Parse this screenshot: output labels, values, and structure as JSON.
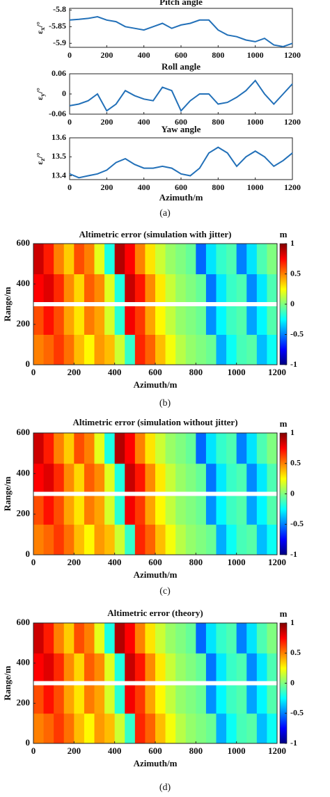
{
  "captions": [
    "(a)",
    "(b)",
    "(c)",
    "(d)"
  ],
  "chart_data": [
    {
      "type": "line",
      "title": "Pitch angle",
      "ylabel": "ε",
      "ylabel_sub": "x",
      "ylabel_unit": "/°",
      "x": [
        0,
        50,
        100,
        150,
        200,
        250,
        300,
        350,
        400,
        450,
        500,
        550,
        600,
        650,
        700,
        750,
        800,
        850,
        900,
        950,
        1000,
        1050,
        1100,
        1150,
        1200
      ],
      "series": [
        {
          "color": "#2270b8",
          "values": [
            -5.83,
            -5.828,
            -5.825,
            -5.82,
            -5.83,
            -5.835,
            -5.85,
            -5.855,
            -5.86,
            -5.85,
            -5.84,
            -5.855,
            -5.845,
            -5.84,
            -5.83,
            -5.83,
            -5.86,
            -5.875,
            -5.88,
            -5.89,
            -5.895,
            -5.885,
            -5.905,
            -5.91,
            -5.9
          ]
        }
      ],
      "xlim": [
        0,
        1200
      ],
      "xticks": [
        0,
        200,
        400,
        600,
        800,
        1000,
        1200
      ],
      "ylim": [
        -5.912,
        -5.795
      ],
      "yticks": [
        -5.8,
        -5.85,
        -5.9
      ]
    },
    {
      "type": "line",
      "title": "Roll angle",
      "ylabel": "ε",
      "ylabel_sub": "y",
      "ylabel_unit": "/°",
      "x": [
        0,
        50,
        100,
        150,
        200,
        250,
        300,
        350,
        400,
        450,
        500,
        550,
        600,
        650,
        700,
        750,
        800,
        850,
        900,
        950,
        1000,
        1050,
        1100,
        1150,
        1200
      ],
      "series": [
        {
          "color": "#2270b8",
          "values": [
            -0.035,
            -0.03,
            -0.02,
            0.0,
            -0.05,
            -0.03,
            0.01,
            -0.005,
            -0.015,
            -0.02,
            0.02,
            0.01,
            -0.05,
            -0.02,
            0.0,
            0.0,
            -0.03,
            -0.025,
            -0.01,
            0.01,
            0.04,
            0.0,
            -0.03,
            0.0,
            0.03
          ]
        }
      ],
      "xlim": [
        0,
        1200
      ],
      "xticks": [
        0,
        200,
        400,
        600,
        800,
        1000,
        1200
      ],
      "ylim": [
        -0.06,
        0.06
      ],
      "yticks": [
        0.06,
        0,
        -0.06
      ]
    },
    {
      "type": "line",
      "title": "Yaw angle",
      "ylabel": "ε",
      "ylabel_sub": "z",
      "ylabel_unit": "/°",
      "xlabel": "Azimuth/m",
      "x": [
        0,
        50,
        100,
        150,
        200,
        250,
        300,
        350,
        400,
        450,
        500,
        550,
        600,
        650,
        700,
        750,
        800,
        850,
        900,
        950,
        1000,
        1050,
        1100,
        1150,
        1200
      ],
      "series": [
        {
          "color": "#2270b8",
          "values": [
            13.41,
            13.39,
            13.4,
            13.41,
            13.43,
            13.47,
            13.49,
            13.46,
            13.44,
            13.44,
            13.45,
            13.44,
            13.41,
            13.4,
            13.44,
            13.52,
            13.55,
            13.52,
            13.45,
            13.5,
            13.53,
            13.5,
            13.45,
            13.48,
            13.52
          ]
        }
      ],
      "xlim": [
        0,
        1200
      ],
      "xticks": [
        0,
        200,
        400,
        600,
        800,
        1000,
        1200
      ],
      "ylim": [
        13.38,
        13.6
      ],
      "yticks": [
        13.6,
        13.5,
        13.4
      ]
    },
    {
      "type": "heatmap",
      "title": "Altimetric error (simulation with  jitter)",
      "xlabel": "Azimuth/m",
      "ylabel": "Range/m",
      "colorbar_label": "m",
      "x": [
        25,
        75,
        125,
        175,
        225,
        275,
        325,
        375,
        425,
        475,
        525,
        575,
        625,
        675,
        725,
        775,
        825,
        875,
        925,
        975,
        1025,
        1075,
        1125,
        1175
      ],
      "y": [
        75,
        225,
        375,
        525
      ],
      "values": [
        [
          0.5,
          0.55,
          0.64,
          0.53,
          0.38,
          0.26,
          0.45,
          0.38,
          0.15,
          -0.15,
          0.68,
          0.56,
          0.38,
          0.23,
          0.11,
          0.04,
          0,
          -0.04,
          -0.41,
          -0.23,
          -0.11,
          -0.08,
          -0.38,
          -0.23
        ],
        [
          0.6,
          0.72,
          0.6,
          0.43,
          0.3,
          0.51,
          0.43,
          0.17,
          -0.17,
          0.77,
          0.64,
          0.43,
          0.26,
          0.13,
          0.04,
          0,
          -0.04,
          -0.47,
          -0.26,
          -0.13,
          -0.09,
          -0.43,
          -0.26,
          -0.09
        ],
        [
          0.75,
          0.81,
          0.67,
          0.48,
          0.33,
          0.57,
          0.48,
          0.19,
          -0.19,
          0.86,
          0.71,
          0.48,
          0.29,
          0.14,
          0.05,
          0,
          -0.05,
          -0.52,
          -0.29,
          -0.14,
          -0.1,
          -0.48,
          -0.29,
          -0.1
        ],
        [
          0.85,
          0.7,
          0.5,
          0.35,
          0.6,
          0.5,
          0.2,
          -0.2,
          0.9,
          0.75,
          0.5,
          0.3,
          0.15,
          0.05,
          0.0,
          -0.05,
          -0.55,
          -0.3,
          -0.15,
          -0.1,
          -0.5,
          -0.3,
          -0.1,
          0.0
        ]
      ],
      "xlim": [
        0,
        1200
      ],
      "xticks": [
        0,
        200,
        400,
        600,
        800,
        1000,
        1200
      ],
      "ylim": [
        0,
        600
      ],
      "yticks": [
        0,
        200,
        400,
        600
      ],
      "clim": [
        -1,
        1
      ],
      "colorbar_ticks": [
        -1,
        -0.5,
        0,
        0.5,
        1
      ]
    },
    {
      "type": "heatmap",
      "title": "Altimetric error (simulation without jitter)",
      "xlabel": "Azimuth/m",
      "ylabel": "Range/m",
      "colorbar_label": "m",
      "x": [
        25,
        75,
        125,
        175,
        225,
        275,
        325,
        375,
        425,
        475,
        525,
        575,
        625,
        675,
        725,
        775,
        825,
        875,
        925,
        975,
        1025,
        1075,
        1125,
        1175
      ],
      "y": [
        75,
        225,
        375,
        525
      ],
      "values": [
        [
          0.5,
          0.55,
          0.64,
          0.53,
          0.38,
          0.26,
          0.45,
          0.38,
          0.15,
          -0.15,
          0.68,
          0.56,
          0.38,
          0.23,
          0.11,
          0.04,
          0,
          -0.04,
          -0.41,
          -0.23,
          -0.11,
          -0.08,
          -0.38,
          -0.23
        ],
        [
          0.6,
          0.72,
          0.6,
          0.43,
          0.3,
          0.51,
          0.43,
          0.17,
          -0.17,
          0.77,
          0.64,
          0.43,
          0.26,
          0.13,
          0.04,
          0,
          -0.04,
          -0.47,
          -0.26,
          -0.13,
          -0.09,
          -0.43,
          -0.26,
          -0.09
        ],
        [
          0.75,
          0.81,
          0.67,
          0.48,
          0.33,
          0.57,
          0.48,
          0.19,
          -0.19,
          0.86,
          0.71,
          0.48,
          0.29,
          0.14,
          0.05,
          0,
          -0.05,
          -0.52,
          -0.29,
          -0.14,
          -0.1,
          -0.48,
          -0.29,
          -0.1
        ],
        [
          0.85,
          0.7,
          0.5,
          0.35,
          0.6,
          0.5,
          0.2,
          -0.2,
          0.9,
          0.75,
          0.5,
          0.3,
          0.15,
          0.05,
          0.0,
          -0.05,
          -0.55,
          -0.3,
          -0.15,
          -0.1,
          -0.5,
          -0.3,
          -0.1,
          0.0
        ]
      ],
      "xlim": [
        0,
        1200
      ],
      "xticks": [
        0,
        200,
        400,
        600,
        800,
        1000,
        1200
      ],
      "ylim": [
        0,
        600
      ],
      "yticks": [
        0,
        200,
        400,
        600
      ],
      "clim": [
        -1,
        1
      ],
      "colorbar_ticks": [
        -1,
        -0.5,
        0,
        0.5,
        1
      ]
    },
    {
      "type": "heatmap",
      "title": "Altimetric error  (theory)",
      "xlabel": "Azimuth/m",
      "ylabel": "Range/m",
      "colorbar_label": "m",
      "x": [
        25,
        75,
        125,
        175,
        225,
        275,
        325,
        375,
        425,
        475,
        525,
        575,
        625,
        675,
        725,
        775,
        825,
        875,
        925,
        975,
        1025,
        1075,
        1125,
        1175
      ],
      "y": [
        75,
        225,
        375,
        525
      ],
      "values": [
        [
          0.5,
          0.55,
          0.64,
          0.53,
          0.38,
          0.26,
          0.45,
          0.38,
          0.15,
          -0.15,
          0.68,
          0.56,
          0.38,
          0.23,
          0.11,
          0.04,
          0,
          -0.04,
          -0.41,
          -0.23,
          -0.11,
          -0.08,
          -0.38,
          -0.23
        ],
        [
          0.6,
          0.72,
          0.6,
          0.43,
          0.3,
          0.51,
          0.43,
          0.17,
          -0.17,
          0.77,
          0.64,
          0.43,
          0.26,
          0.13,
          0.04,
          0,
          -0.04,
          -0.47,
          -0.26,
          -0.13,
          -0.09,
          -0.43,
          -0.26,
          -0.09
        ],
        [
          0.75,
          0.81,
          0.67,
          0.48,
          0.33,
          0.57,
          0.48,
          0.19,
          -0.19,
          0.86,
          0.71,
          0.48,
          0.29,
          0.14,
          0.05,
          0,
          -0.05,
          -0.52,
          -0.29,
          -0.14,
          -0.1,
          -0.48,
          -0.29,
          -0.1
        ],
        [
          0.85,
          0.7,
          0.5,
          0.35,
          0.6,
          0.5,
          0.2,
          -0.2,
          0.9,
          0.75,
          0.5,
          0.3,
          0.15,
          0.05,
          0.0,
          -0.05,
          -0.55,
          -0.3,
          -0.15,
          -0.1,
          -0.5,
          -0.3,
          -0.1,
          0.0
        ]
      ],
      "xlim": [
        0,
        1200
      ],
      "xticks": [
        0,
        200,
        400,
        600,
        800,
        1000,
        1200
      ],
      "ylim": [
        0,
        600
      ],
      "yticks": [
        0,
        200,
        400,
        600
      ],
      "clim": [
        -1,
        1
      ],
      "colorbar_ticks": [
        -1,
        -0.5,
        0,
        0.5,
        1
      ]
    }
  ]
}
